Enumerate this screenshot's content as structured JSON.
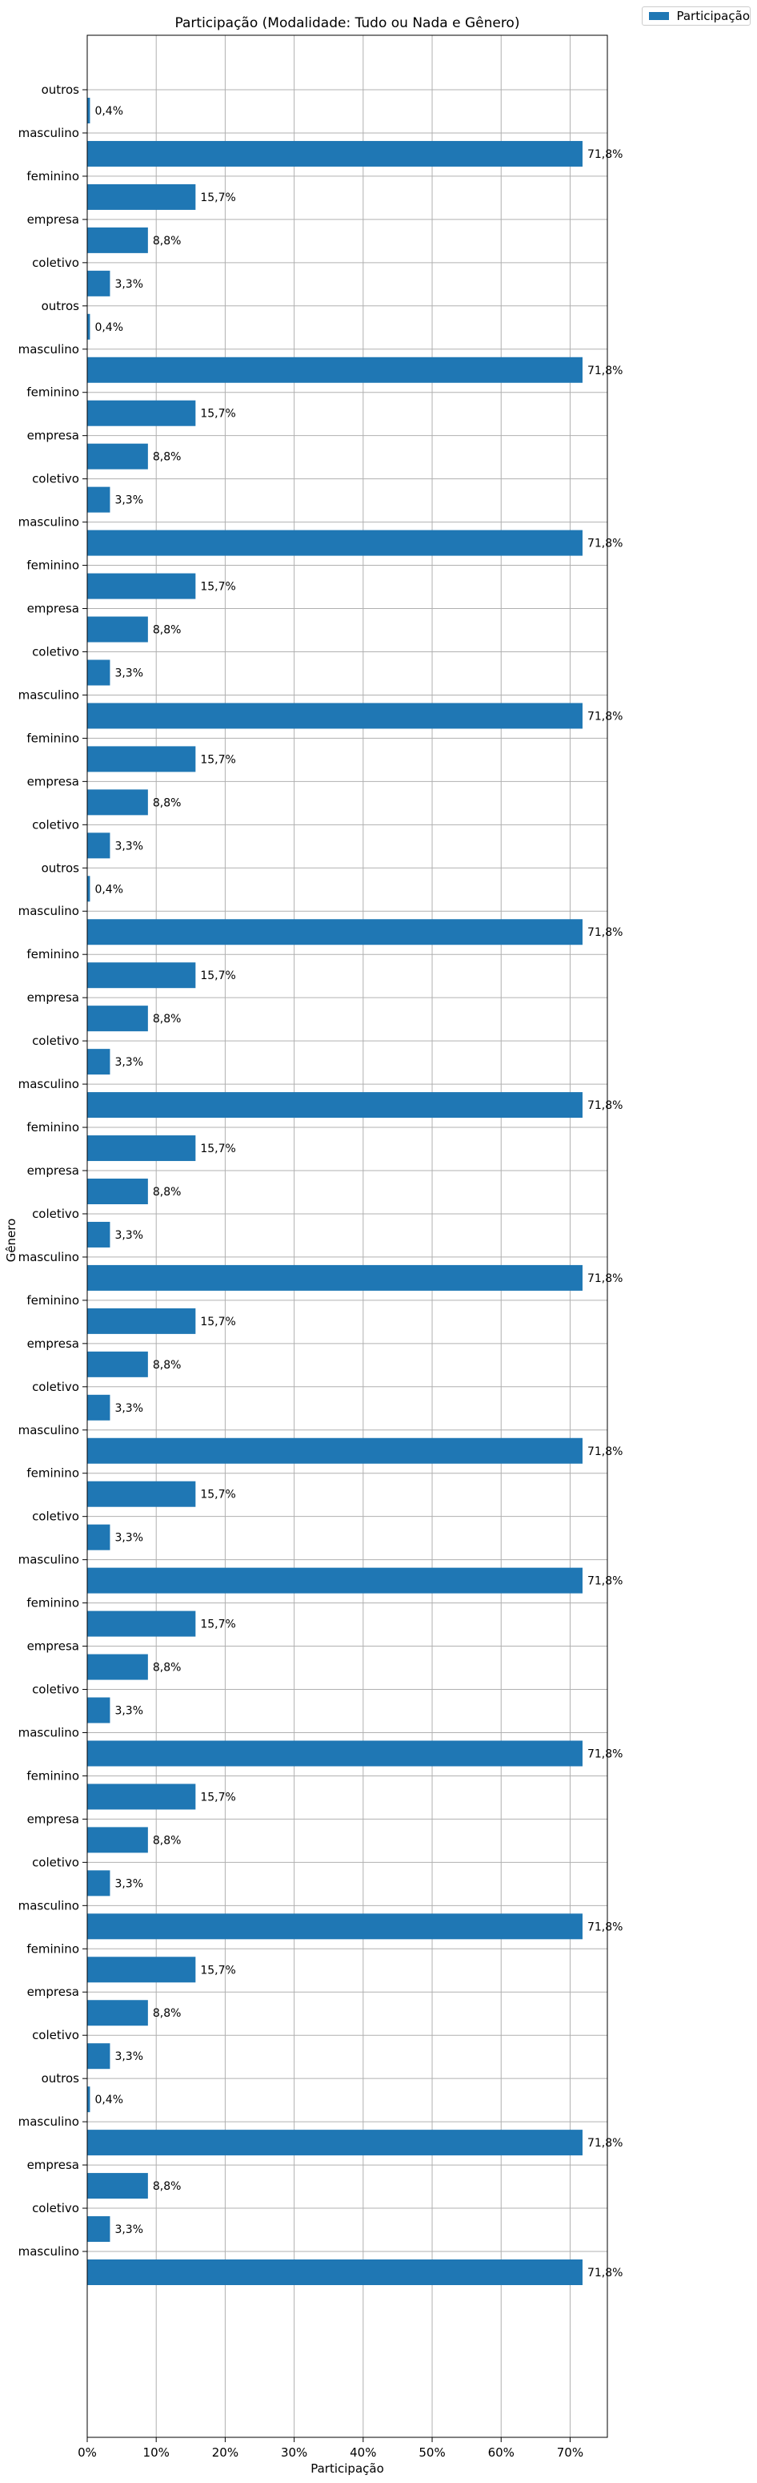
{
  "chart_data": {
    "type": "bar",
    "orientation": "horizontal",
    "title": "Participação (Modalidade: Tudo ou Nada e Gênero)",
    "xlabel": "Participação",
    "ylabel": "Gênero",
    "xlim": [
      0,
      75.4
    ],
    "x_ticks": [
      0,
      10,
      20,
      30,
      40,
      50,
      60,
      70
    ],
    "x_tick_labels": [
      "0%",
      "10%",
      "20%",
      "30%",
      "40%",
      "50%",
      "60%",
      "70%"
    ],
    "grid": true,
    "legend_position": "outside-top-right",
    "bar_color": "#1f77b4",
    "categories": [
      "outros",
      "masculino",
      "feminino",
      "empresa",
      "coletivo",
      "outros",
      "masculino",
      "feminino",
      "empresa",
      "coletivo",
      "masculino",
      "feminino",
      "empresa",
      "coletivo",
      "masculino",
      "feminino",
      "empresa",
      "coletivo",
      "outros",
      "masculino",
      "feminino",
      "empresa",
      "coletivo",
      "masculino",
      "feminino",
      "empresa",
      "coletivo",
      "masculino",
      "feminino",
      "empresa",
      "coletivo",
      "masculino",
      "feminino",
      "coletivo",
      "masculino",
      "feminino",
      "empresa",
      "coletivo",
      "masculino",
      "feminino",
      "empresa",
      "coletivo",
      "masculino",
      "feminino",
      "empresa",
      "coletivo",
      "outros",
      "masculino",
      "empresa",
      "coletivo",
      "masculino"
    ],
    "series": [
      {
        "name": "Participação",
        "values": [
          0.4,
          71.8,
          15.7,
          8.8,
          3.3,
          0.4,
          71.8,
          15.7,
          8.8,
          3.3,
          71.8,
          15.7,
          8.8,
          3.3,
          71.8,
          15.7,
          8.8,
          3.3,
          0.4,
          71.8,
          15.7,
          8.8,
          3.3,
          71.8,
          15.7,
          8.8,
          3.3,
          71.8,
          15.7,
          8.8,
          3.3,
          71.8,
          15.7,
          3.3,
          71.8,
          15.7,
          8.8,
          3.3,
          71.8,
          15.7,
          8.8,
          3.3,
          71.8,
          15.7,
          8.8,
          3.3,
          0.4,
          71.8,
          8.8,
          3.3,
          71.8
        ],
        "labels": [
          "0,4%",
          "71,8%",
          "15,7%",
          "8,8%",
          "3,3%",
          "0,4%",
          "71,8%",
          "15,7%",
          "8,8%",
          "3,3%",
          "71,8%",
          "15,7%",
          "8,8%",
          "3,3%",
          "71,8%",
          "15,7%",
          "8,8%",
          "3,3%",
          "0,4%",
          "71,8%",
          "15,7%",
          "8,8%",
          "3,3%",
          "71,8%",
          "15,7%",
          "8,8%",
          "3,3%",
          "71,8%",
          "15,7%",
          "8,8%",
          "3,3%",
          "71,8%",
          "15,7%",
          "3,3%",
          "71,8%",
          "15,7%",
          "8,8%",
          "3,3%",
          "71,8%",
          "15,7%",
          "8,8%",
          "3,3%",
          "71,8%",
          "15,7%",
          "8,8%",
          "3,3%",
          "0,4%",
          "71,8%",
          "8,8%",
          "3,3%",
          "71,8%"
        ]
      }
    ]
  }
}
